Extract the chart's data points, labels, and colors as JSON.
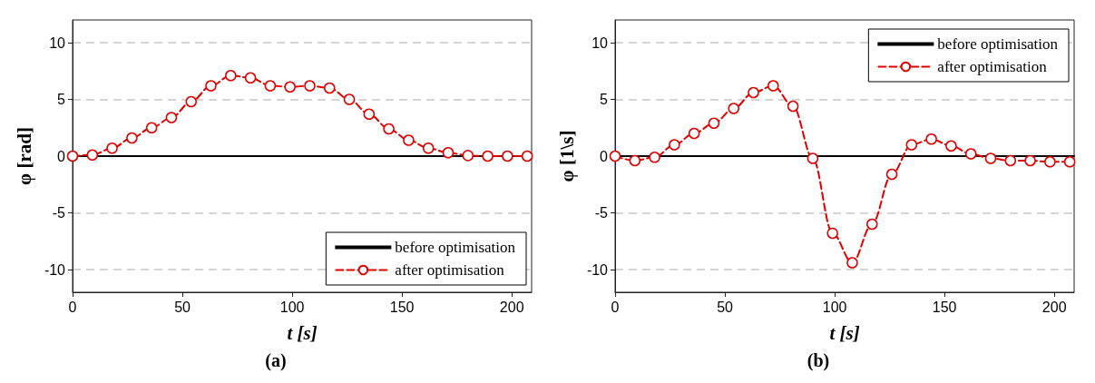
{
  "chart_data": [
    {
      "type": "line",
      "title": "(a)",
      "xlabel": "t [s]",
      "ylabel": "φ [rad]",
      "xlim": [
        0,
        209
      ],
      "xticks": [
        0,
        50,
        100,
        150,
        200
      ],
      "ylim": [
        -12,
        12
      ],
      "yticks": [
        -10,
        -5,
        0,
        5,
        10
      ],
      "grid": "y",
      "legend": "bottom right",
      "series": [
        {
          "name": "before optimisation",
          "color": "#000000",
          "marker": "none",
          "line_style": "solid",
          "x": [
            0,
            209
          ],
          "values": [
            0,
            0
          ]
        },
        {
          "name": "after optimisation",
          "color": "#e00000",
          "marker": "circle",
          "line_style": "dashed",
          "x": [
            0,
            9,
            18,
            27,
            36,
            45,
            54,
            63,
            72,
            81,
            90,
            99,
            108,
            117,
            126,
            135,
            144,
            153,
            162,
            171,
            180,
            189,
            198,
            207
          ],
          "values": [
            0,
            0.1,
            0.7,
            1.6,
            2.5,
            3.4,
            4.8,
            6.2,
            7.1,
            6.9,
            6.2,
            6.1,
            6.2,
            6.0,
            5.0,
            3.7,
            2.4,
            1.4,
            0.7,
            0.3,
            0.05,
            0,
            0,
            0
          ]
        }
      ]
    },
    {
      "type": "line",
      "title": "(b)",
      "xlabel": "t [s]",
      "ylabel": "φ [1\\s]",
      "xlim": [
        0,
        209
      ],
      "xticks": [
        0,
        50,
        100,
        150,
        200
      ],
      "ylim": [
        -12,
        12
      ],
      "yticks": [
        -10,
        -5,
        0,
        5,
        10
      ],
      "grid": "y",
      "legend": "top right",
      "series": [
        {
          "name": "before optimisation",
          "color": "#000000",
          "marker": "none",
          "line_style": "solid",
          "x": [
            0,
            209
          ],
          "values": [
            0,
            0
          ]
        },
        {
          "name": "after optimisation",
          "color": "#e00000",
          "marker": "circle",
          "line_style": "dashed",
          "x": [
            0,
            9,
            18,
            27,
            36,
            45,
            54,
            63,
            72,
            81,
            90,
            99,
            108,
            117,
            126,
            135,
            144,
            153,
            162,
            171,
            180,
            189,
            198,
            207
          ],
          "values": [
            0,
            -0.4,
            -0.1,
            1.0,
            2.0,
            2.9,
            4.2,
            5.6,
            6.2,
            4.4,
            -0.2,
            -6.8,
            -9.4,
            -6.0,
            -1.6,
            1.0,
            1.5,
            0.9,
            0.2,
            -0.2,
            -0.4,
            -0.4,
            -0.5,
            -0.5
          ]
        }
      ]
    }
  ]
}
